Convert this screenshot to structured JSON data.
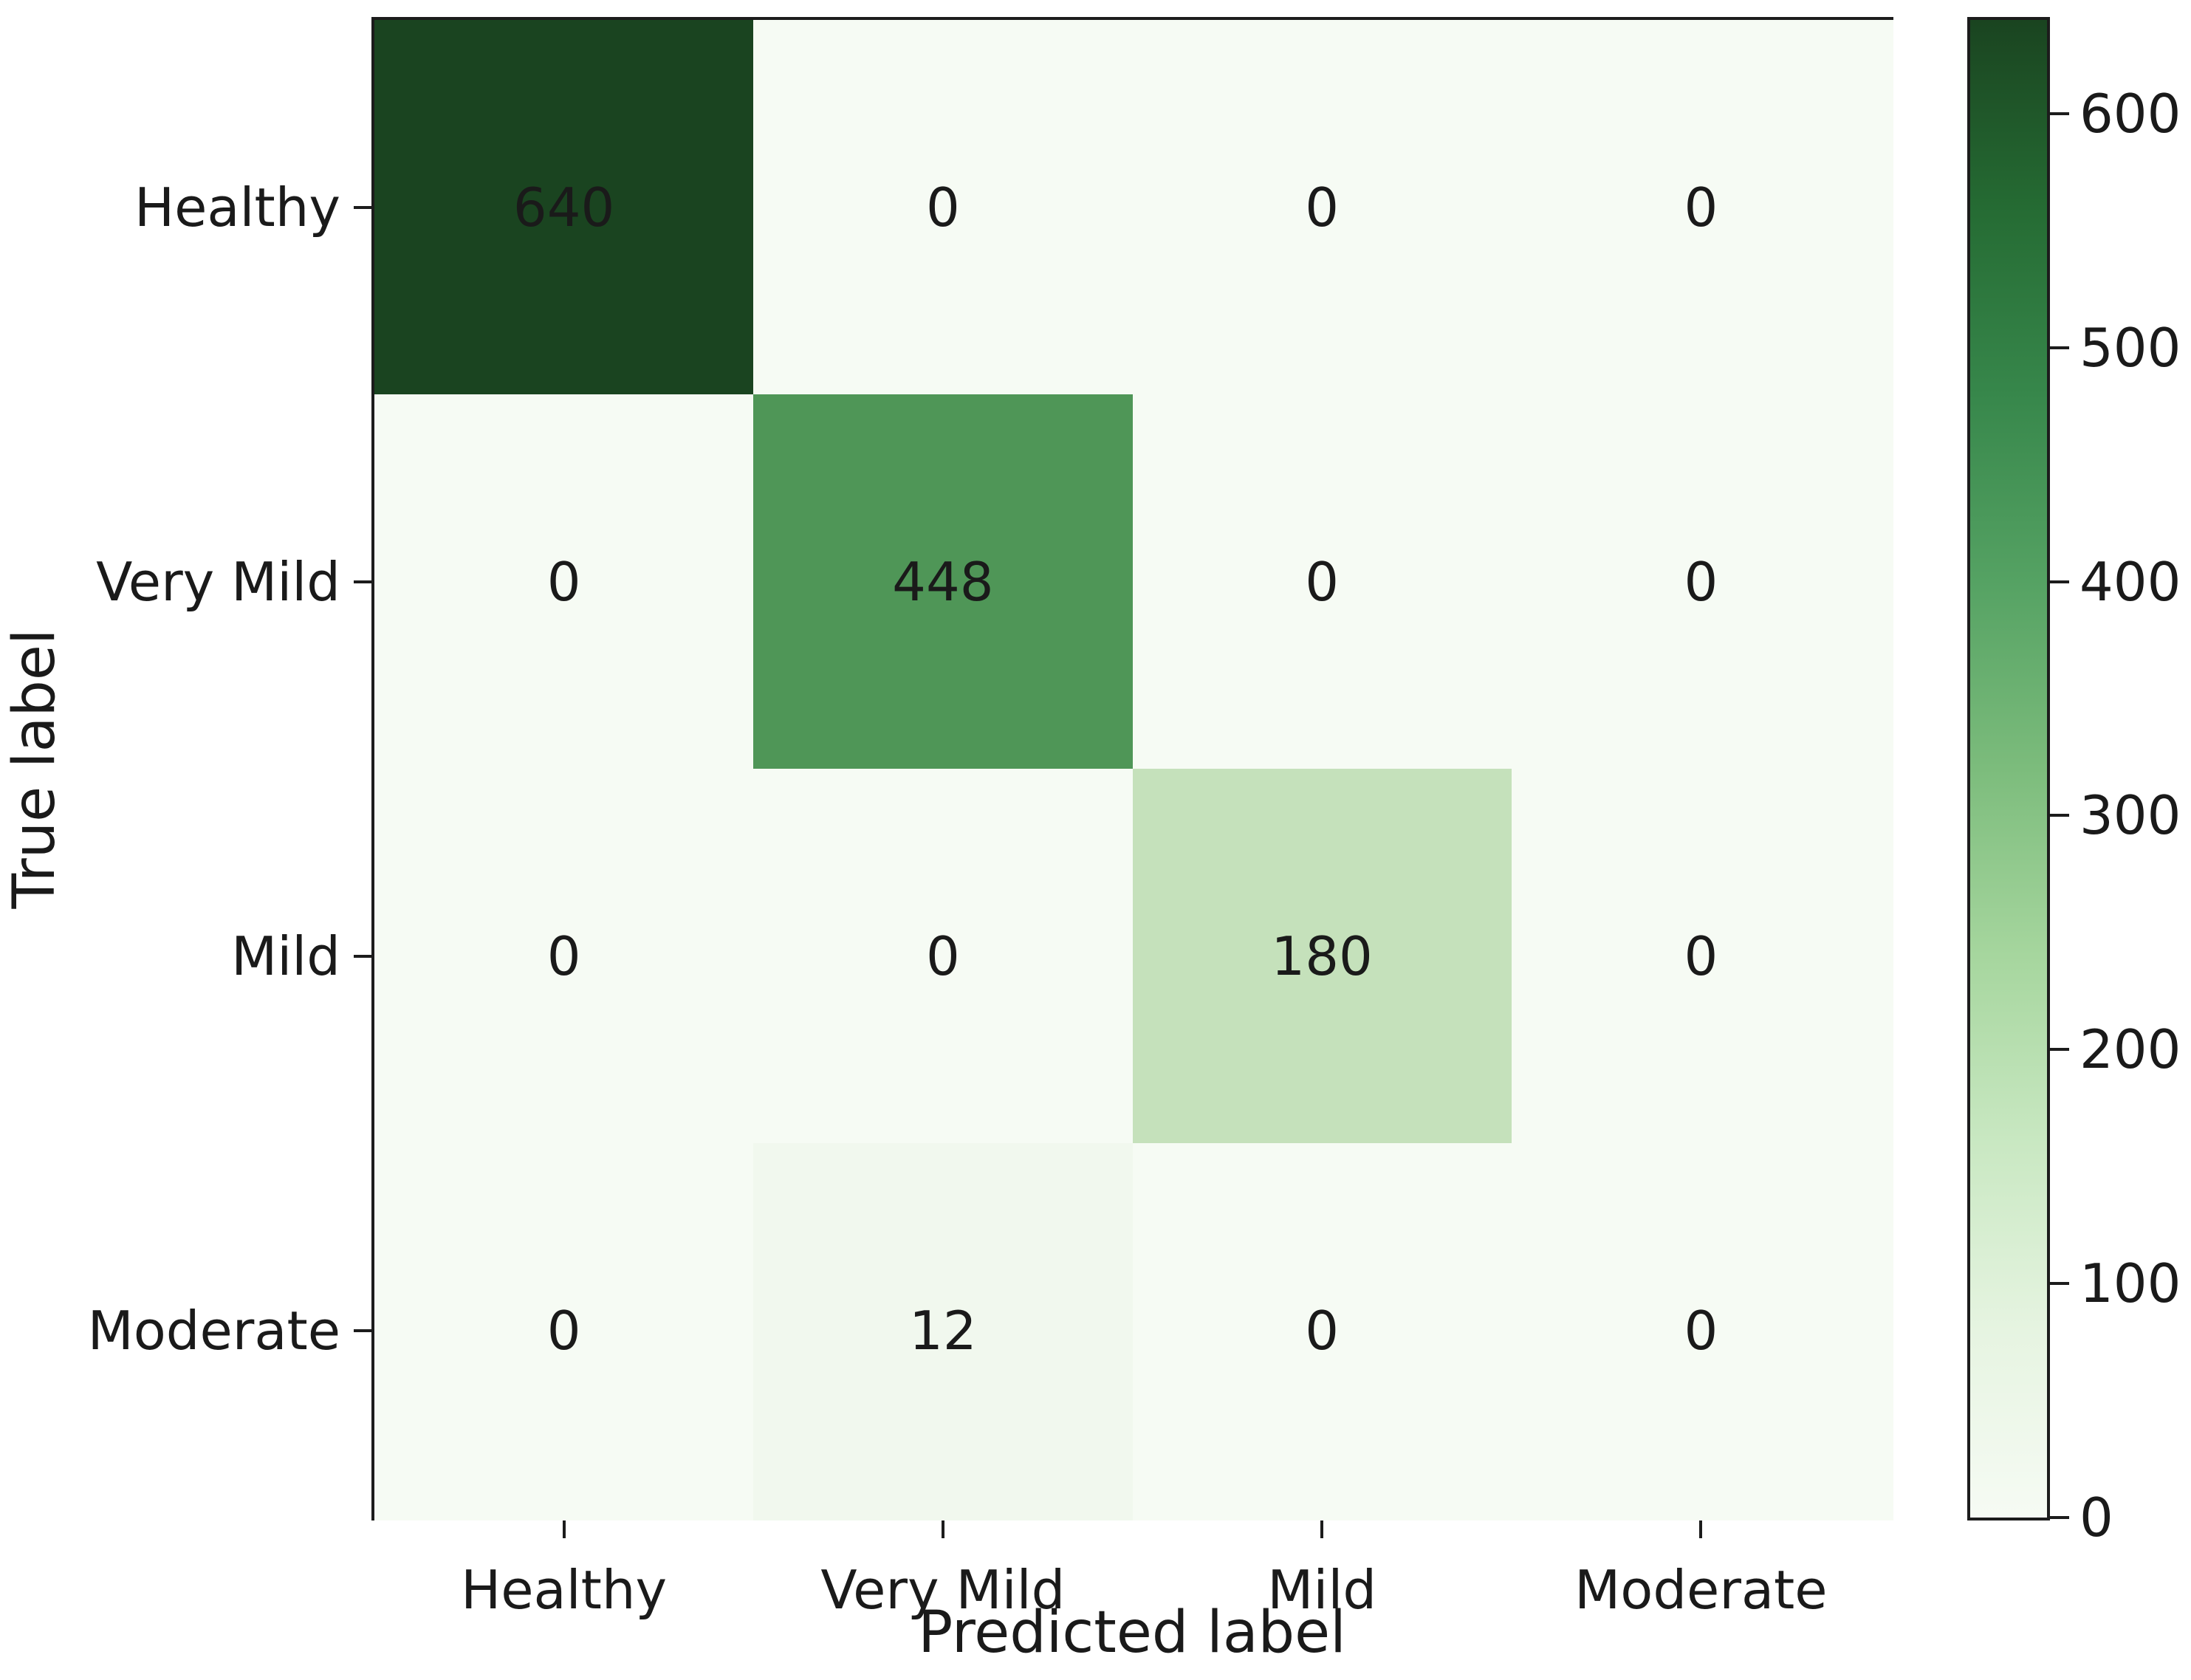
{
  "figure": {
    "background": "#ffffff",
    "spine_color": "#1c1c1c",
    "text_color": "#1a1a1a"
  },
  "chart_data": {
    "type": "heatmap",
    "subtype": "confusion-matrix",
    "title": "",
    "xlabel": "Predicted label",
    "ylabel": "True label",
    "categories": [
      "Healthy",
      "Very Mild",
      "Mild",
      "Moderate"
    ],
    "x_tick_labels": [
      "Healthy",
      "Very Mild",
      "Mild",
      "Moderate"
    ],
    "y_tick_labels": [
      "Healthy",
      "Very Mild",
      "Mild",
      "Moderate"
    ],
    "matrix": [
      [
        640,
        0,
        0,
        0
      ],
      [
        0,
        448,
        0,
        0
      ],
      [
        0,
        0,
        180,
        0
      ],
      [
        0,
        12,
        0,
        0
      ]
    ],
    "cell_colors": [
      [
        "#1a4420",
        "#f6fbf4",
        "#f6fbf4",
        "#f6fbf4"
      ],
      [
        "#f6fbf4",
        "#4f9657",
        "#f6fbf4",
        "#f6fbf4"
      ],
      [
        "#f6fbf4",
        "#f6fbf4",
        "#c5e1bb",
        "#f6fbf4"
      ],
      [
        "#f6fbf4",
        "#f1f8ee",
        "#f6fbf4",
        "#f6fbf4"
      ]
    ],
    "value_range": [
      0,
      640
    ],
    "colormap": "Greens",
    "grid": false,
    "legend_position": "colorbar-right",
    "colorbar": {
      "ticks": [
        0,
        100,
        200,
        300,
        400,
        500,
        600
      ],
      "gradient_stops": [
        {
          "value": 0,
          "color": "#f6fbf4"
        },
        {
          "value": 80,
          "color": "#e6f4e1"
        },
        {
          "value": 160,
          "color": "#c9e8c2"
        },
        {
          "value": 240,
          "color": "#a6d69e"
        },
        {
          "value": 320,
          "color": "#7cbc7c"
        },
        {
          "value": 400,
          "color": "#55a263"
        },
        {
          "value": 480,
          "color": "#37874b"
        },
        {
          "value": 560,
          "color": "#256b33"
        },
        {
          "value": 640,
          "color": "#1a4420"
        }
      ]
    }
  }
}
